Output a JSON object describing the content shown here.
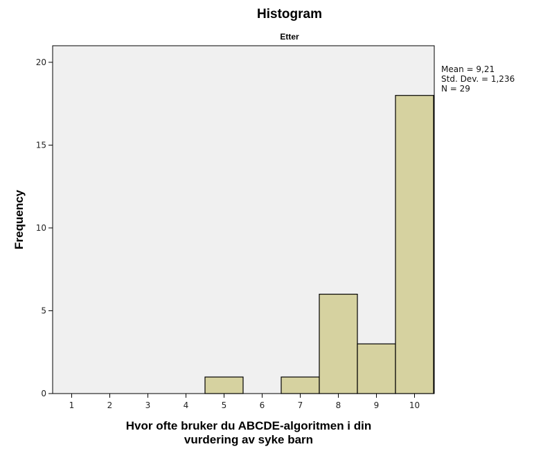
{
  "chart_data": {
    "type": "bar",
    "title": "Histogram",
    "subtitle": "Etter",
    "xlabel_lines": [
      "Hvor ofte bruker du ABCDE-algoritmen i din",
      "vurdering av syke barn"
    ],
    "ylabel": "Frequency",
    "categories": [
      "1",
      "2",
      "3",
      "4",
      "5",
      "6",
      "7",
      "8",
      "9",
      "10"
    ],
    "values": [
      0,
      0,
      0,
      0,
      1,
      0,
      1,
      6,
      3,
      18
    ],
    "ylim": [
      0,
      21
    ],
    "yticks": [
      "0",
      "5",
      "10",
      "15",
      "20"
    ],
    "stats": [
      "Mean = 9,21",
      "Std. Dev. = 1,236",
      "N = 29"
    ],
    "grid": false,
    "bar_color": "#d6d2a0",
    "plot_background": "#f0f0f0"
  }
}
